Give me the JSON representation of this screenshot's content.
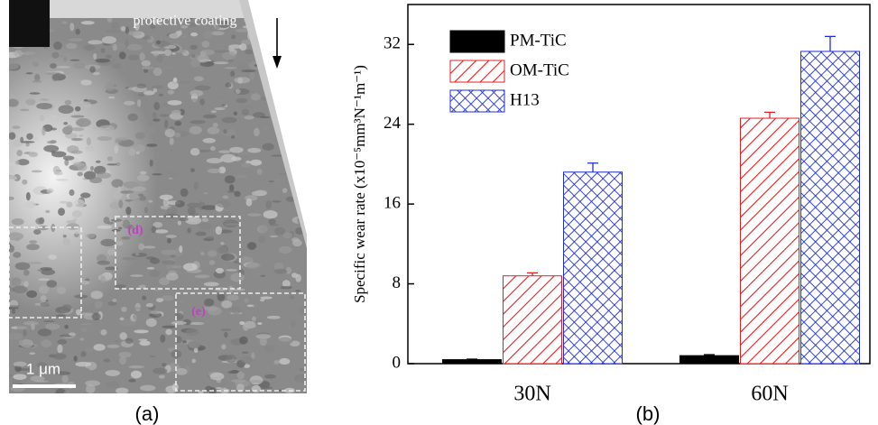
{
  "panel_a": {
    "label": "(a)",
    "annotations": [
      "protective coating",
      "(d)",
      "(e)"
    ],
    "scale_bar": "1 μm"
  },
  "chart_data": {
    "type": "bar",
    "panel_label": "(b)",
    "ylabel": "Specific wear rate (x10⁻⁵mm³N⁻¹m⁻¹)",
    "categories": [
      "30N",
      "60N"
    ],
    "series": [
      {
        "name": "PM-TiC",
        "color": "#000000",
        "pattern": "solid",
        "values": [
          0.4,
          0.8
        ],
        "errors": [
          0.05,
          0.1
        ]
      },
      {
        "name": "OM-TiC",
        "color": "#e02020",
        "pattern": "hatch",
        "values": [
          8.8,
          24.6
        ],
        "errors": [
          0.3,
          0.6
        ]
      },
      {
        "name": "H13",
        "color": "#1f2fd0",
        "pattern": "crosshatch",
        "values": [
          19.2,
          31.3
        ],
        "errors": [
          0.9,
          1.5
        ]
      }
    ],
    "ylim": [
      0,
      36
    ],
    "yticks": [
      0,
      8,
      16,
      24,
      32
    ],
    "legend": "upper left"
  }
}
